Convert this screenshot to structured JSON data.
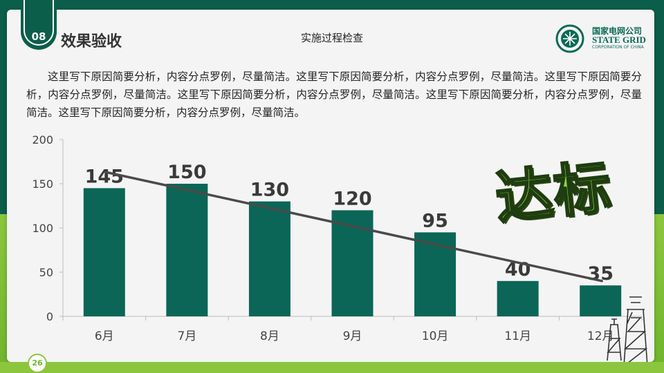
{
  "slide": {
    "section_number": "08",
    "section_title": "效果验收",
    "center_title": "实施过程检查",
    "paragraph": "这里写下原因简要分析，内容分点罗例，尽量简洁。这里写下原因简要分析，内容分点罗例，尽量简洁。这里写下原因简要分析，内容分点罗例，尽量简洁。这里写下原因简要分析，内容分点罗例，尽量简洁。这里写下原因简要分析，内容分点罗例，尽量简洁。这里写下原因简要分析，内容分点罗例，尽量简洁。",
    "stamp_text": "达标",
    "page_number": "26"
  },
  "logo": {
    "name_cn": "国家电网公司",
    "name_en": "STATE GRID",
    "subtitle": "CORPORATION OF CHINA"
  },
  "colors": {
    "bar": "#0b6657",
    "trend_line": "#4a4a4a",
    "brand_green": "#8cc63f",
    "brand_dark": "#0b5e4a"
  },
  "chart_data": {
    "type": "bar",
    "categories": [
      "6月",
      "7月",
      "8月",
      "9月",
      "10月",
      "11月",
      "12月"
    ],
    "values": [
      145,
      150,
      130,
      120,
      95,
      40,
      35
    ],
    "ylim": [
      0,
      200
    ],
    "yticks": [
      0,
      50,
      100,
      150,
      200
    ],
    "trend_line": {
      "from": 163,
      "to": 40
    },
    "grid": false,
    "data_labels": true
  }
}
